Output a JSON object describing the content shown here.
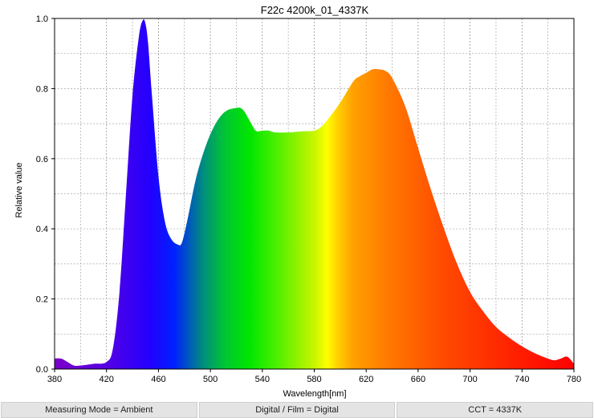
{
  "chart_data": {
    "type": "area",
    "title": "F22c 4200k_01_4337K",
    "xlabel": "Wavelength[nm]",
    "ylabel": "Relative value",
    "xlim": [
      380,
      780
    ],
    "ylim": [
      0,
      1.0
    ],
    "xticks": [
      380,
      420,
      460,
      500,
      540,
      580,
      620,
      660,
      700,
      740,
      780
    ],
    "yticks": [
      0.0,
      0.2,
      0.4,
      0.6,
      0.8,
      1.0
    ],
    "grid": true,
    "fill": "spectral-gradient",
    "x": [
      380,
      385,
      390,
      395,
      400,
      410,
      420,
      425,
      430,
      435,
      440,
      445,
      448,
      450,
      452,
      455,
      460,
      465,
      470,
      475,
      478,
      482,
      490,
      500,
      510,
      520,
      525,
      530,
      535,
      540,
      545,
      550,
      560,
      570,
      580,
      585,
      590,
      600,
      610,
      615,
      620,
      625,
      630,
      635,
      640,
      650,
      660,
      670,
      680,
      690,
      700,
      710,
      720,
      730,
      740,
      750,
      760,
      765,
      770,
      775,
      780
    ],
    "values": [
      0.03,
      0.03,
      0.02,
      0.01,
      0.01,
      0.015,
      0.02,
      0.06,
      0.22,
      0.5,
      0.78,
      0.95,
      0.995,
      0.985,
      0.93,
      0.78,
      0.55,
      0.42,
      0.37,
      0.355,
      0.36,
      0.42,
      0.56,
      0.67,
      0.73,
      0.745,
      0.74,
      0.71,
      0.68,
      0.68,
      0.68,
      0.675,
      0.675,
      0.678,
      0.68,
      0.69,
      0.71,
      0.76,
      0.82,
      0.835,
      0.845,
      0.855,
      0.855,
      0.85,
      0.83,
      0.75,
      0.63,
      0.51,
      0.4,
      0.3,
      0.22,
      0.165,
      0.12,
      0.09,
      0.065,
      0.045,
      0.03,
      0.025,
      0.03,
      0.035,
      0.015
    ]
  },
  "status_bar": {
    "measuring_mode": "Measuring Mode = Ambient",
    "digital_film": "Digital / Film = Digital",
    "cct": "CCT = 4337K"
  }
}
